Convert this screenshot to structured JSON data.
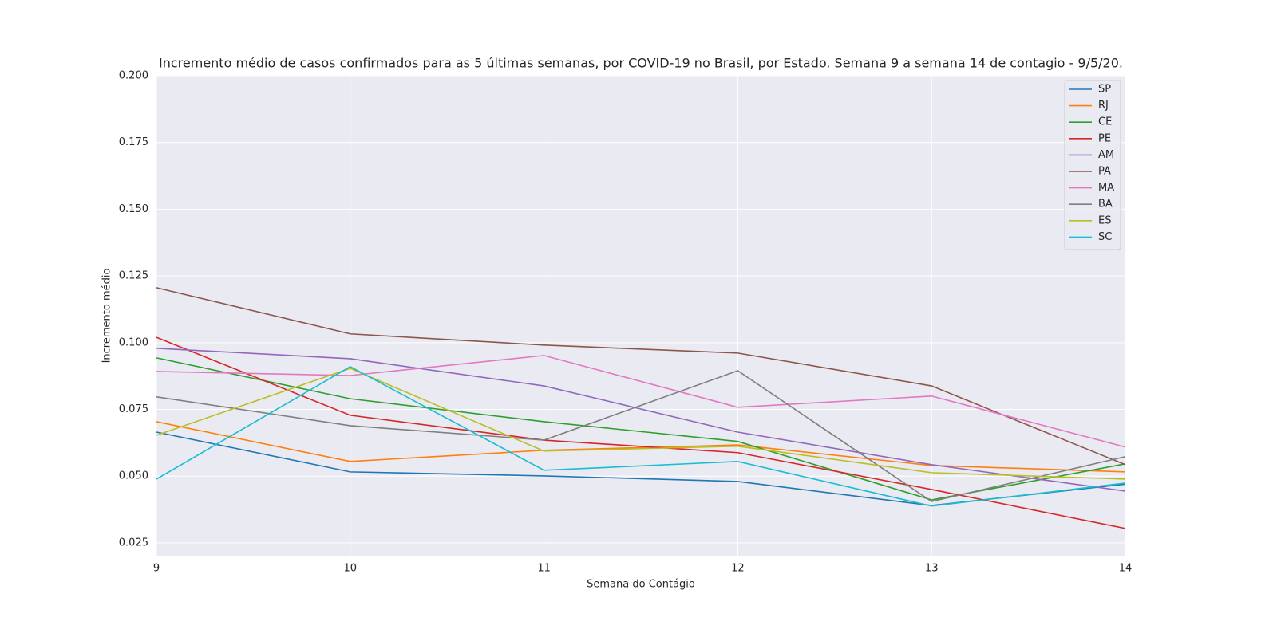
{
  "chart_data": {
    "type": "line",
    "title": "Incremento médio de casos confirmados para as 5 últimas semanas, por COVID-19 no Brasil, por Estado. Semana 9 a semana 14 de contagio - 9/5/20.",
    "x_label": "Semana do Contágio",
    "y_label": "Incremento médio",
    "x": [
      9,
      10,
      11,
      12,
      13,
      14
    ],
    "xlim": [
      9,
      14
    ],
    "xticks": [
      9,
      10,
      11,
      12,
      13,
      14
    ],
    "ylim": [
      0.0202,
      0.2
    ],
    "yticks": [
      0.025,
      {
        "value": 0.05,
        "label": "0.050"
      },
      0.075,
      {
        "value": 0.1,
        "label": "0.100"
      },
      0.125,
      {
        "value": 0.15,
        "label": "0.150"
      },
      0.175,
      {
        "value": 0.2,
        "label": "0.200"
      }
    ],
    "grid": true,
    "legend": "upper right",
    "series": [
      {
        "name": "SP",
        "color": "#1f77b4",
        "values": [
          0.0665,
          0.0516,
          0.0501,
          0.048,
          0.039,
          0.047
        ]
      },
      {
        "name": "RJ",
        "color": "#ff7f0e",
        "values": [
          0.0704,
          0.0555,
          0.0597,
          0.0617,
          0.054,
          0.0516
        ]
      },
      {
        "name": "CE",
        "color": "#2ca02c",
        "values": [
          0.0943,
          0.079,
          0.0704,
          0.063,
          0.0411,
          0.0546
        ]
      },
      {
        "name": "PE",
        "color": "#d62728",
        "values": [
          0.102,
          0.0728,
          0.0635,
          0.0588,
          0.045,
          0.0304
        ]
      },
      {
        "name": "AM",
        "color": "#9467bd",
        "values": [
          0.0979,
          0.094,
          0.0838,
          0.0665,
          0.0543,
          0.0444
        ]
      },
      {
        "name": "PA",
        "color": "#8c564b",
        "values": [
          0.1206,
          0.1033,
          0.0991,
          0.0961,
          0.0838,
          0.0543
        ]
      },
      {
        "name": "MA",
        "color": "#e377c2",
        "values": [
          0.0892,
          0.0877,
          0.0952,
          0.0758,
          0.08,
          0.0609
        ]
      },
      {
        "name": "BA",
        "color": "#7f7f7f",
        "values": [
          0.0797,
          0.0689,
          0.0635,
          0.0895,
          0.0405,
          0.0573
        ]
      },
      {
        "name": "ES",
        "color": "#bcbd22",
        "values": [
          0.0653,
          0.0904,
          0.0594,
          0.0612,
          0.0513,
          0.0489
        ]
      },
      {
        "name": "SC",
        "color": "#17becf",
        "values": [
          0.0489,
          0.091,
          0.0522,
          0.0555,
          0.0388,
          0.0474
        ]
      }
    ]
  }
}
